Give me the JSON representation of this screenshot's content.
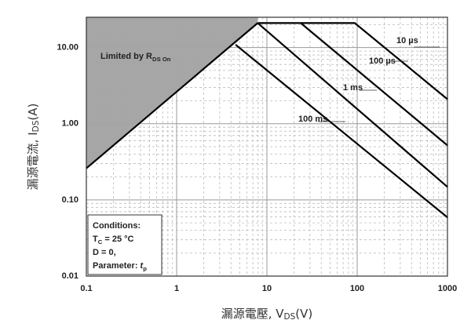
{
  "chart_data": {
    "type": "line",
    "log_x": true,
    "log_y": true,
    "grid": true,
    "x_label": {
      "text": "漏源電壓, V",
      "sub": "DS",
      "rest": "(V)"
    },
    "y_label": {
      "text": "漏源電流, I",
      "sub": "DS",
      "rest": "(A)"
    },
    "xlim": [
      0.1,
      1000
    ],
    "ylim": [
      0.01,
      25
    ],
    "xticks": [
      0.1,
      1,
      10,
      100,
      1000
    ],
    "yticks": [
      0.01,
      {
        "value": 0.1,
        "label": "0.10"
      },
      {
        "value": 1,
        "label": "1.00"
      },
      {
        "value": 10,
        "label": "10.00"
      }
    ],
    "region": {
      "text": "Limited by R",
      "sub": "DS On",
      "color": "#a6a6a6",
      "x": [
        0.1,
        7.9
      ],
      "values": [
        0.26,
        21
      ]
    },
    "series": [
      {
        "name": "10 µs",
        "color": "#000000",
        "x": [
          7.9,
          94,
          1000
        ],
        "values": [
          21,
          21,
          2.1
        ]
      },
      {
        "name": "100 µs",
        "color": "#000000",
        "x": [
          23.7,
          1000
        ],
        "values": [
          21,
          0.52
        ]
      },
      {
        "name": "1 ms",
        "color": "#000000",
        "x": [
          7.9,
          1000
        ],
        "values": [
          21,
          0.148
        ]
      },
      {
        "name": "100 ms",
        "color": "#000000",
        "x": [
          4.5,
          1000
        ],
        "values": [
          10.9,
          0.059
        ]
      }
    ],
    "conditions": [
      {
        "text": "Conditions:"
      },
      {
        "text": "T",
        "sub": "C",
        "rest": " = 25 °C"
      },
      {
        "text": "D = 0,"
      },
      {
        "text": "Parameter: ",
        "italic": "t",
        "sub": "p"
      }
    ]
  }
}
